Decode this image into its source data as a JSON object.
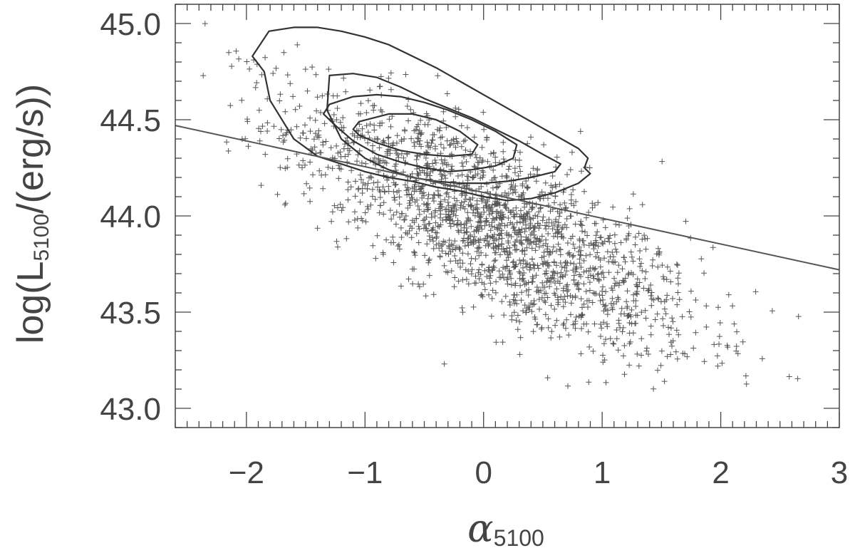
{
  "chart_data": {
    "type": "scatter",
    "xlabel": {
      "base": "α",
      "sub": "5100"
    },
    "ylabel": {
      "pre": "log(L",
      "sub": "5100",
      "post": "/(erg/s))"
    },
    "xlim": [
      -2.6,
      3.0
    ],
    "ylim": [
      42.9,
      45.1
    ],
    "x_ticks": [
      -2,
      -1,
      0,
      1,
      2,
      3
    ],
    "x_tick_labels": [
      "−2",
      "−1",
      "0",
      "1",
      "2",
      "3"
    ],
    "y_ticks": [
      43.0,
      43.5,
      44.0,
      44.5,
      45.0
    ],
    "y_tick_labels": [
      "43.0",
      "43.5",
      "44.0",
      "44.5",
      "45.0"
    ],
    "x_minor_step": 0.1,
    "y_minor_step": 0.1,
    "grid": false,
    "marker": "plus",
    "colors": {
      "axis": "#444444",
      "points": "#555555",
      "contours": "#333333",
      "fit_line": "#555555"
    },
    "fit_line": {
      "x": [
        -2.6,
        3.0
      ],
      "y": [
        44.47,
        43.72
      ]
    },
    "scatter_cloud": {
      "n_points": 2000,
      "center": [
        0.1,
        43.95
      ],
      "x_sigma": 0.85,
      "x_range": [
        -2.5,
        2.95
      ],
      "relation_slope": -0.3,
      "y_sigma": 0.22,
      "y_range": [
        43.1,
        45.05
      ]
    },
    "contours": [
      {
        "level": 1,
        "x": [
          -1.81,
          -1.6,
          -1.4,
          -1.2,
          -1.0,
          -0.8,
          -0.6,
          -0.4,
          -0.2,
          0.0,
          0.2,
          0.4,
          0.6,
          0.8,
          0.88,
          0.85,
          0.9,
          0.8,
          0.6,
          0.4,
          0.2,
          0.0,
          -0.2,
          -0.4,
          -0.6,
          -0.8,
          -1.0,
          -1.2,
          -1.4,
          -1.6,
          -1.8,
          -1.85,
          -1.95,
          -1.81
        ],
        "y": [
          44.96,
          44.98,
          44.98,
          44.96,
          44.93,
          44.89,
          44.83,
          44.77,
          44.7,
          44.63,
          44.56,
          44.49,
          44.42,
          44.35,
          44.3,
          44.25,
          44.22,
          44.17,
          44.12,
          44.09,
          44.08,
          44.1,
          44.13,
          44.15,
          44.18,
          44.2,
          44.23,
          44.27,
          44.31,
          44.4,
          44.6,
          44.75,
          44.83,
          44.96
        ]
      },
      {
        "level": 2,
        "x": [
          -1.3,
          -1.1,
          -0.9,
          -0.7,
          -0.5,
          -0.3,
          -0.1,
          0.1,
          0.3,
          0.5,
          0.65,
          0.6,
          0.4,
          0.2,
          0.0,
          -0.2,
          -0.4,
          -0.6,
          -0.8,
          -1.0,
          -1.2,
          -1.32,
          -1.3
        ],
        "y": [
          44.73,
          44.74,
          44.72,
          44.67,
          44.61,
          44.56,
          44.51,
          44.45,
          44.39,
          44.32,
          44.27,
          44.23,
          44.2,
          44.18,
          44.17,
          44.17,
          44.18,
          44.2,
          44.24,
          44.3,
          44.4,
          44.55,
          44.73
        ]
      },
      {
        "level": 3,
        "x": [
          -1.3,
          -1.1,
          -0.9,
          -0.7,
          -0.5,
          -0.3,
          -0.1,
          0.1,
          0.28,
          0.25,
          0.1,
          -0.1,
          -0.3,
          -0.5,
          -0.7,
          -0.9,
          -1.1,
          -1.25,
          -1.35,
          -1.3
        ],
        "y": [
          44.58,
          44.62,
          44.63,
          44.62,
          44.59,
          44.55,
          44.5,
          44.44,
          44.37,
          44.3,
          44.26,
          44.24,
          44.23,
          44.25,
          44.28,
          44.32,
          44.39,
          44.47,
          44.53,
          44.58
        ]
      },
      {
        "level": 4,
        "x": [
          -1.05,
          -0.8,
          -0.6,
          -0.4,
          -0.2,
          -0.05,
          -0.1,
          -0.3,
          -0.5,
          -0.7,
          -0.9,
          -1.05,
          -1.1,
          -1.05
        ],
        "y": [
          44.49,
          44.53,
          44.53,
          44.5,
          44.44,
          44.37,
          44.32,
          44.31,
          44.32,
          44.34,
          44.38,
          44.42,
          44.45,
          44.49
        ]
      }
    ]
  }
}
